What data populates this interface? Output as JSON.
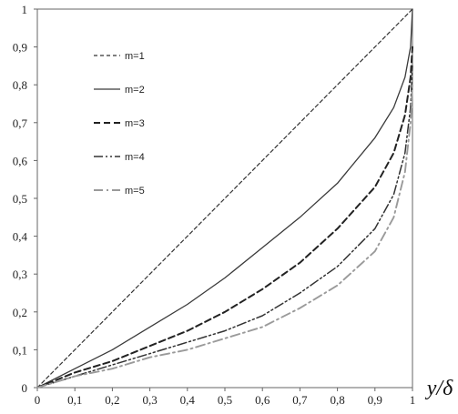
{
  "chart_data": {
    "type": "line",
    "xlabel": "y/δ",
    "ylabel": "",
    "xlim": [
      0,
      1
    ],
    "ylim": [
      0,
      1
    ],
    "x_ticks": [
      "0",
      "0,1",
      "0,2",
      "0,3",
      "0,4",
      "0,5",
      "0,6",
      "0,7",
      "0,8",
      "0,9",
      "1"
    ],
    "y_ticks": [
      "0",
      "0,1",
      "0,2",
      "0,3",
      "0,4",
      "0,5",
      "0,6",
      "0,7",
      "0,8",
      "0,9",
      "1"
    ],
    "grid": false,
    "legend_position": "top-left",
    "series": [
      {
        "name": "m=1",
        "color": "#333333",
        "dash": "short-dash",
        "points": [
          [
            0,
            0
          ],
          [
            0.1,
            0.1
          ],
          [
            0.2,
            0.2
          ],
          [
            0.3,
            0.3
          ],
          [
            0.4,
            0.4
          ],
          [
            0.5,
            0.5
          ],
          [
            0.6,
            0.6
          ],
          [
            0.7,
            0.7
          ],
          [
            0.8,
            0.8
          ],
          [
            0.9,
            0.9
          ],
          [
            1,
            1
          ]
        ]
      },
      {
        "name": "m=2",
        "color": "#3a3a3a",
        "dash": "solid",
        "points": [
          [
            0,
            0
          ],
          [
            0.1,
            0.05
          ],
          [
            0.2,
            0.1
          ],
          [
            0.3,
            0.16
          ],
          [
            0.4,
            0.22
          ],
          [
            0.5,
            0.29
          ],
          [
            0.6,
            0.37
          ],
          [
            0.7,
            0.45
          ],
          [
            0.8,
            0.54
          ],
          [
            0.9,
            0.66
          ],
          [
            0.95,
            0.74
          ],
          [
            0.98,
            0.82
          ],
          [
            0.995,
            0.9
          ],
          [
            1,
            1
          ]
        ]
      },
      {
        "name": "m=3",
        "color": "#222222",
        "dash": "long-dash",
        "points": [
          [
            0,
            0
          ],
          [
            0.1,
            0.04
          ],
          [
            0.2,
            0.07
          ],
          [
            0.3,
            0.11
          ],
          [
            0.4,
            0.15
          ],
          [
            0.5,
            0.2
          ],
          [
            0.6,
            0.26
          ],
          [
            0.7,
            0.33
          ],
          [
            0.8,
            0.42
          ],
          [
            0.9,
            0.53
          ],
          [
            0.95,
            0.62
          ],
          [
            0.98,
            0.72
          ],
          [
            0.995,
            0.82
          ],
          [
            1,
            0.9
          ]
        ]
      },
      {
        "name": "m=4",
        "color": "#333333",
        "dash": "dash-dot-dot",
        "points": [
          [
            0,
            0
          ],
          [
            0.1,
            0.03
          ],
          [
            0.2,
            0.06
          ],
          [
            0.3,
            0.09
          ],
          [
            0.4,
            0.12
          ],
          [
            0.5,
            0.15
          ],
          [
            0.6,
            0.19
          ],
          [
            0.7,
            0.25
          ],
          [
            0.8,
            0.32
          ],
          [
            0.9,
            0.42
          ],
          [
            0.95,
            0.51
          ],
          [
            0.98,
            0.62
          ],
          [
            0.995,
            0.74
          ],
          [
            1,
            0.85
          ]
        ]
      },
      {
        "name": "m=5",
        "color": "#9a9a9a",
        "dash": "dash-dot",
        "points": [
          [
            0,
            0
          ],
          [
            0.1,
            0.03
          ],
          [
            0.2,
            0.05
          ],
          [
            0.3,
            0.08
          ],
          [
            0.4,
            0.1
          ],
          [
            0.5,
            0.13
          ],
          [
            0.6,
            0.16
          ],
          [
            0.7,
            0.21
          ],
          [
            0.8,
            0.27
          ],
          [
            0.9,
            0.36
          ],
          [
            0.95,
            0.45
          ],
          [
            0.98,
            0.57
          ],
          [
            0.995,
            0.7
          ],
          [
            1,
            0.8
          ]
        ]
      }
    ]
  }
}
